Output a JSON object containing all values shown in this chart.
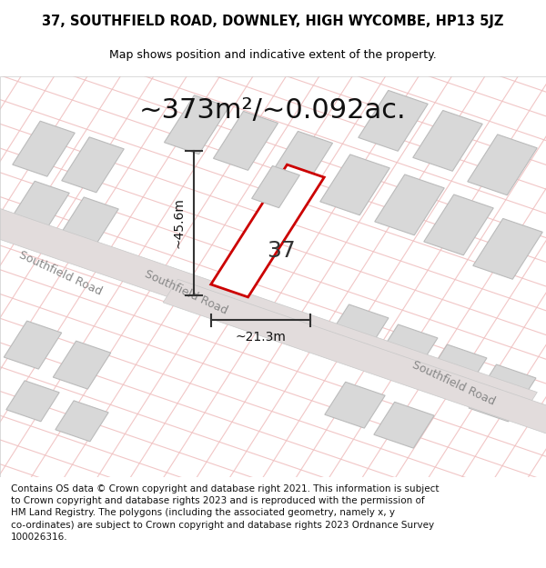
{
  "title_line1": "37, SOUTHFIELD ROAD, DOWNLEY, HIGH WYCOMBE, HP13 5JZ",
  "title_line2": "Map shows position and indicative extent of the property.",
  "area_text": "~373m²/~0.092ac.",
  "label_37": "37",
  "dim_height": "~45.6m",
  "dim_width": "~21.3m",
  "road_label1": "Southfield Road",
  "road_label2": "Southfield Road",
  "road_label3": "Southfield Road",
  "footer_lines": [
    "Contains OS data © Crown copyright and database right 2021. This information is subject",
    "to Crown copyright and database rights 2023 and is reproduced with the permission of",
    "HM Land Registry. The polygons (including the associated geometry, namely x, y",
    "co-ordinates) are subject to Crown copyright and database rights 2023 Ordnance Survey",
    "100026316."
  ],
  "bg_color": "#ffffff",
  "map_bg": "#f5eeee",
  "grid_line_color": "#f0c0c0",
  "building_fill": "#d8d8d8",
  "building_stroke": "#bbbbbb",
  "highlight_fill": "#ffffff",
  "highlight_stroke": "#cc0000",
  "dim_line_color": "#333333",
  "road_fill": "#e2dcdc",
  "road_edge": "#c8c8c8",
  "title_fontsize": 10.5,
  "subtitle_fontsize": 9,
  "area_fontsize": 22,
  "label_fontsize": 18,
  "dim_fontsize": 10,
  "road_fontsize": 9,
  "footer_fontsize": 7.5
}
